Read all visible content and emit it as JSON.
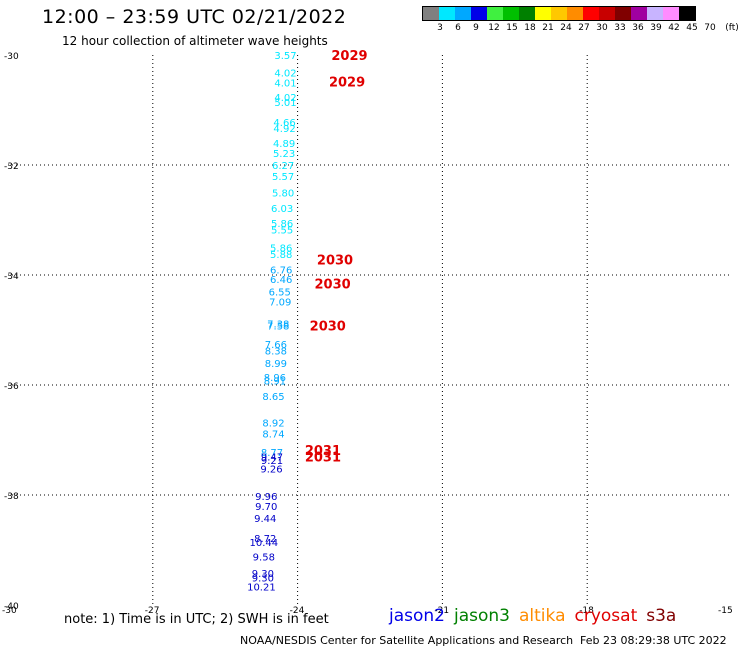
{
  "title": "12:00 – 23:59 UTC 02/21/2022",
  "subtitle": "12 hour collection of altimeter wave heights",
  "legend": {
    "colors": [
      "#808080",
      "#00e8ff",
      "#00a8ff",
      "#0000e8",
      "#40f040",
      "#00c000",
      "#008000",
      "#ffff00",
      "#ffc800",
      "#ff8c00",
      "#ff0000",
      "#c80000",
      "#800000",
      "#a000a0",
      "#c8b4ff",
      "#ff8cff",
      "#000000"
    ],
    "labels": [
      "3",
      "6",
      "9",
      "12",
      "15",
      "18",
      "21",
      "24",
      "27",
      "30",
      "33",
      "36",
      "39",
      "42",
      "45",
      "70",
      "(ft)"
    ]
  },
  "axes": {
    "lat_labels": [
      "-30",
      "-32",
      "-34",
      "-36",
      "-38",
      "-40"
    ],
    "lon_labels": [
      "-30",
      "-27",
      "-24",
      "-21",
      "-18",
      "-15"
    ],
    "lat_range": [
      -40,
      -30
    ],
    "lon_range": [
      -30,
      -15
    ],
    "grid": "dotted"
  },
  "observations": [
    {
      "lat": -30.0,
      "lon": -24.25,
      "value": "3.57",
      "color": "#00e8ff"
    },
    {
      "lat": -30.32,
      "lon": -24.25,
      "value": "4.02",
      "color": "#00e8ff"
    },
    {
      "lat": -30.5,
      "lon": -24.25,
      "value": "4.01",
      "color": "#00e8ff"
    },
    {
      "lat": -30.76,
      "lon": -24.25,
      "value": "4.02",
      "color": "#00e8ff"
    },
    {
      "lat": -30.85,
      "lon": -24.25,
      "value": "5.01",
      "color": "#00e8ff"
    },
    {
      "lat": -31.22,
      "lon": -24.27,
      "value": "4.66",
      "color": "#00e8ff"
    },
    {
      "lat": -31.33,
      "lon": -24.27,
      "value": "4.92",
      "color": "#00e8ff"
    },
    {
      "lat": -31.6,
      "lon": -24.28,
      "value": "4.89",
      "color": "#00e8ff"
    },
    {
      "lat": -31.78,
      "lon": -24.28,
      "value": "5.23",
      "color": "#00e8ff"
    },
    {
      "lat": -32.0,
      "lon": -24.3,
      "value": "6.27",
      "color": "#00e8ff"
    },
    {
      "lat": -32.2,
      "lon": -24.3,
      "value": "5.57",
      "color": "#00e8ff"
    },
    {
      "lat": -32.5,
      "lon": -24.3,
      "value": "5.80",
      "color": "#00e8ff"
    },
    {
      "lat": -32.78,
      "lon": -24.32,
      "value": "6.03",
      "color": "#00e8ff"
    },
    {
      "lat": -33.05,
      "lon": -24.32,
      "value": "5.86",
      "color": "#00e8ff"
    },
    {
      "lat": -33.17,
      "lon": -24.32,
      "value": "5.55",
      "color": "#00e8ff"
    },
    {
      "lat": -33.5,
      "lon": -24.34,
      "value": "5.86",
      "color": "#00e8ff"
    },
    {
      "lat": -33.62,
      "lon": -24.34,
      "value": "5.88",
      "color": "#00e8ff"
    },
    {
      "lat": -33.9,
      "lon": -24.34,
      "value": "6.76",
      "color": "#00a8ff"
    },
    {
      "lat": -34.07,
      "lon": -24.34,
      "value": "6.46",
      "color": "#00a8ff"
    },
    {
      "lat": -34.3,
      "lon": -24.37,
      "value": "6.55",
      "color": "#00a8ff"
    },
    {
      "lat": -34.48,
      "lon": -24.36,
      "value": "7.09",
      "color": "#00a8ff"
    },
    {
      "lat": -34.88,
      "lon": -24.4,
      "value": "7.38",
      "color": "#00a8ff"
    },
    {
      "lat": -34.92,
      "lon": -24.4,
      "value": "7.58",
      "color": "#00a8ff"
    },
    {
      "lat": -35.25,
      "lon": -24.45,
      "value": "7.66",
      "color": "#00a8ff"
    },
    {
      "lat": -35.37,
      "lon": -24.45,
      "value": "8.38",
      "color": "#00a8ff"
    },
    {
      "lat": -35.6,
      "lon": -24.45,
      "value": "8.99",
      "color": "#00a8ff"
    },
    {
      "lat": -35.85,
      "lon": -24.47,
      "value": "8.96",
      "color": "#00a8ff"
    },
    {
      "lat": -35.92,
      "lon": -24.47,
      "value": "8.91",
      "color": "#00a8ff"
    },
    {
      "lat": -36.2,
      "lon": -24.5,
      "value": "8.65",
      "color": "#00a8ff"
    },
    {
      "lat": -36.68,
      "lon": -24.5,
      "value": "8.92",
      "color": "#00a8ff"
    },
    {
      "lat": -36.88,
      "lon": -24.5,
      "value": "8.74",
      "color": "#00a8ff"
    },
    {
      "lat": -37.22,
      "lon": -24.53,
      "value": "8.77",
      "color": "#00a8ff"
    },
    {
      "lat": -37.3,
      "lon": -24.53,
      "value": "9.47",
      "color": "#0000c8"
    },
    {
      "lat": -37.36,
      "lon": -24.53,
      "value": "9.21",
      "color": "#0000c8"
    },
    {
      "lat": -37.52,
      "lon": -24.54,
      "value": "9.26",
      "color": "#0000c8"
    },
    {
      "lat": -38.02,
      "lon": -24.65,
      "value": "9.96",
      "color": "#0000c8"
    },
    {
      "lat": -38.2,
      "lon": -24.65,
      "value": "9.70",
      "color": "#0000c8"
    },
    {
      "lat": -38.42,
      "lon": -24.67,
      "value": "9.44",
      "color": "#0000c8"
    },
    {
      "lat": -38.78,
      "lon": -24.67,
      "value": "8.72",
      "color": "#0000c8"
    },
    {
      "lat": -38.85,
      "lon": -24.7,
      "value": "10.44",
      "color": "#0000c8"
    },
    {
      "lat": -39.12,
      "lon": -24.7,
      "value": "9.58",
      "color": "#0000c8"
    },
    {
      "lat": -39.42,
      "lon": -24.72,
      "value": "9.30",
      "color": "#0000c8"
    },
    {
      "lat": -39.5,
      "lon": -24.72,
      "value": "9.30",
      "color": "#0000c8"
    },
    {
      "lat": -39.66,
      "lon": -24.75,
      "value": "10.21",
      "color": "#0000c8"
    }
  ],
  "time_labels": [
    {
      "lat": -30.0,
      "lon": -23.3,
      "text": "2029"
    },
    {
      "lat": -30.48,
      "lon": -23.35,
      "text": "2029"
    },
    {
      "lat": -33.72,
      "lon": -23.6,
      "text": "2030"
    },
    {
      "lat": -34.15,
      "lon": -23.65,
      "text": "2030"
    },
    {
      "lat": -34.92,
      "lon": -23.75,
      "text": "2030"
    },
    {
      "lat": -37.18,
      "lon": -23.85,
      "text": "2031"
    },
    {
      "lat": -37.3,
      "lon": -23.85,
      "text": "2031"
    }
  ],
  "time_label_color": "#e00000",
  "note": "note: 1) Time is in UTC; 2) SWH is in feet",
  "missions": [
    {
      "name": "jason2",
      "color": "#0000e8"
    },
    {
      "name": "jason3",
      "color": "#008000"
    },
    {
      "name": "altika",
      "color": "#ff8c00"
    },
    {
      "name": "cryosat",
      "color": "#e00000"
    },
    {
      "name": "s3a",
      "color": "#800000"
    }
  ],
  "credit": "NOAA/NESDIS Center for Satellite Applications and Research",
  "timestamp": "Feb 23 08:29:38 UTC 2022"
}
